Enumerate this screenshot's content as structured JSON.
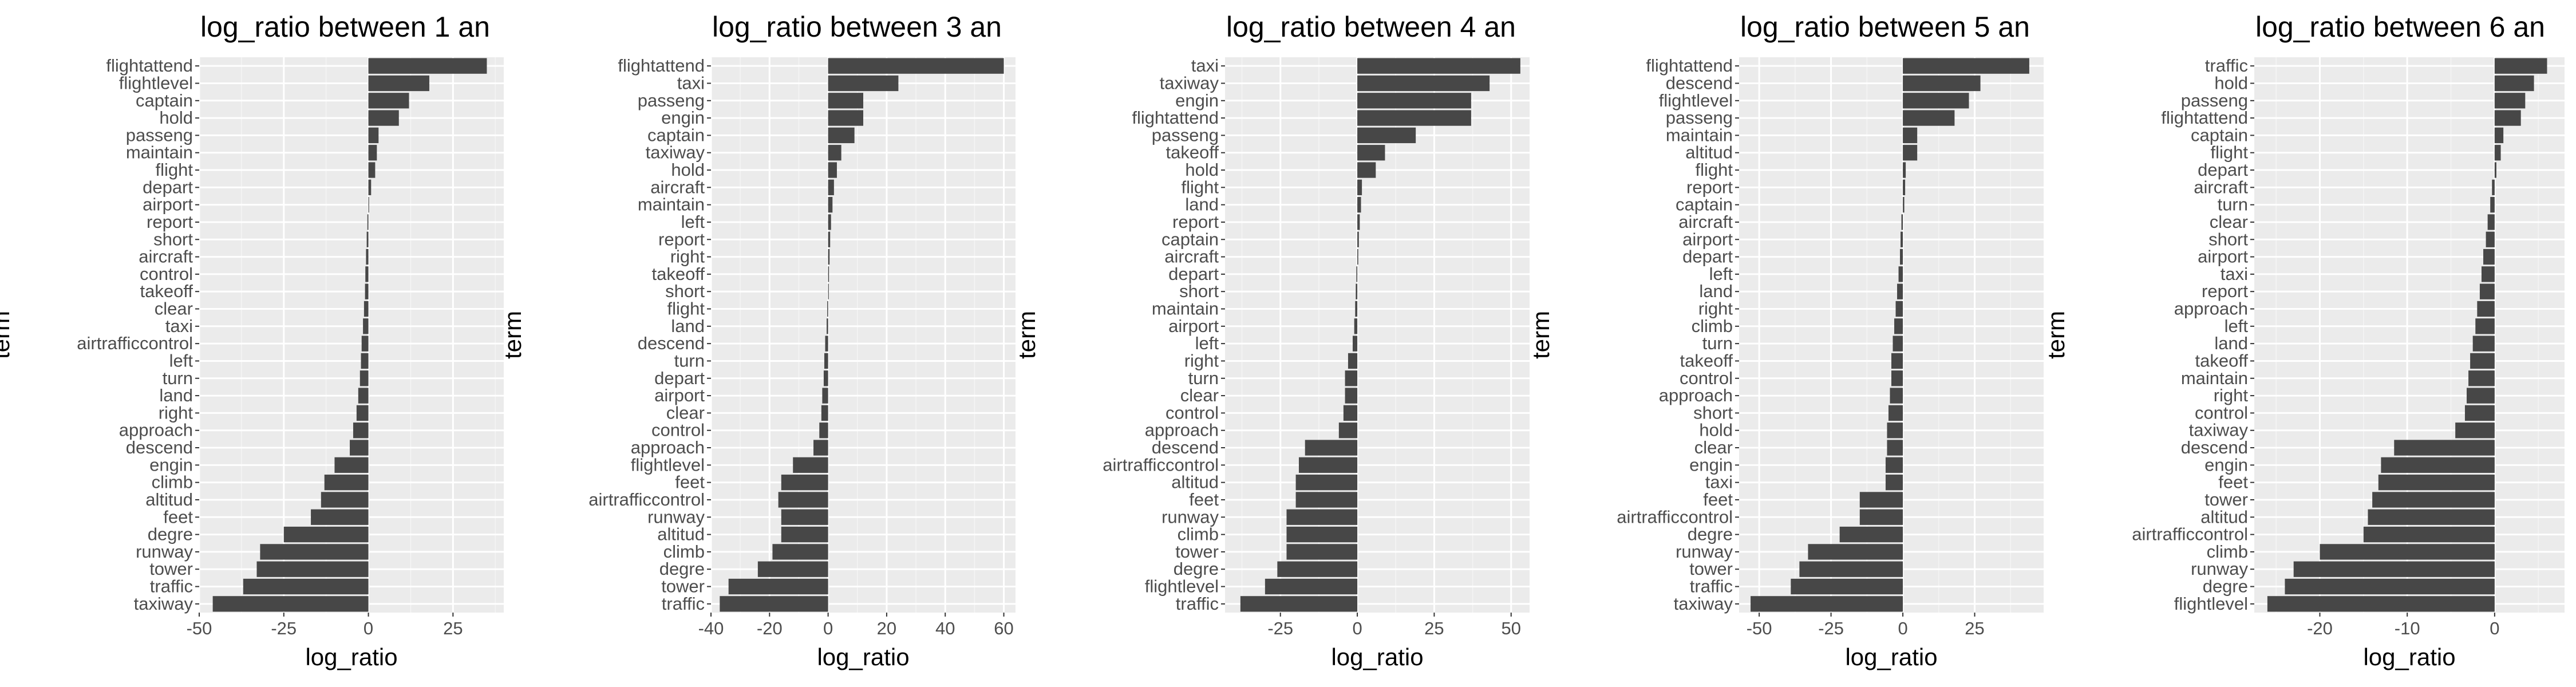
{
  "chart_data": [
    {
      "type": "bar",
      "orientation": "horizontal",
      "title": "log_ratio between 1 an",
      "xlabel": "log_ratio",
      "ylabel": "term",
      "xlim": [
        -50,
        40
      ],
      "xticks": [
        -50,
        -25,
        0,
        25
      ],
      "grid": true,
      "categories": [
        "flightattend",
        "flightlevel",
        "captain",
        "hold",
        "passeng",
        "maintain",
        "flight",
        "depart",
        "airport",
        "report",
        "short",
        "aircraft",
        "control",
        "takeoff",
        "clear",
        "taxi",
        "airtrafficcontrol",
        "left",
        "turn",
        "land",
        "right",
        "approach",
        "descend",
        "engin",
        "climb",
        "altitud",
        "feet",
        "degre",
        "runway",
        "tower",
        "traffic",
        "taxiway"
      ],
      "values": [
        35,
        18,
        12,
        9,
        3,
        2.5,
        2,
        0.8,
        0.2,
        -0.3,
        -0.5,
        -0.7,
        -0.9,
        -1,
        -1.3,
        -1.6,
        -2,
        -2.2,
        -2.5,
        -3,
        -3.5,
        -4.5,
        -5.5,
        -10,
        -13,
        -14,
        -17,
        -25,
        -32,
        -33,
        -37,
        -46
      ]
    },
    {
      "type": "bar",
      "orientation": "horizontal",
      "title": "log_ratio between 3 an",
      "xlabel": "log_ratio",
      "ylabel": "term",
      "xlim": [
        -40,
        64
      ],
      "xticks": [
        -40,
        -20,
        0,
        20,
        40,
        60
      ],
      "grid": true,
      "categories": [
        "flightattend",
        "taxi",
        "passeng",
        "engin",
        "captain",
        "taxiway",
        "hold",
        "aircraft",
        "maintain",
        "left",
        "report",
        "right",
        "takeoff",
        "short",
        "flight",
        "land",
        "descend",
        "turn",
        "depart",
        "airport",
        "clear",
        "control",
        "approach",
        "flightlevel",
        "feet",
        "airtrafficcontrol",
        "runway",
        "altitud",
        "climb",
        "degre",
        "tower",
        "traffic"
      ],
      "values": [
        60,
        24,
        12,
        12,
        9,
        4.5,
        3,
        2,
        1.5,
        1,
        0.7,
        0.5,
        0.3,
        0.2,
        -0.3,
        -0.5,
        -1,
        -1.3,
        -1.5,
        -2,
        -2.3,
        -3,
        -5,
        -12,
        -16,
        -17,
        -16,
        -16,
        -19,
        -24,
        -34,
        -37
      ]
    },
    {
      "type": "bar",
      "orientation": "horizontal",
      "title": "log_ratio between 4 an",
      "xlabel": "log_ratio",
      "ylabel": "term",
      "xlim": [
        -43,
        56
      ],
      "xticks": [
        -25,
        0,
        25,
        50
      ],
      "grid": true,
      "categories": [
        "taxi",
        "taxiway",
        "engin",
        "flightattend",
        "passeng",
        "takeoff",
        "hold",
        "flight",
        "land",
        "report",
        "captain",
        "aircraft",
        "depart",
        "short",
        "maintain",
        "airport",
        "left",
        "right",
        "turn",
        "clear",
        "control",
        "approach",
        "descend",
        "airtrafficcontrol",
        "altitud",
        "feet",
        "runway",
        "climb",
        "tower",
        "degre",
        "flightlevel",
        "traffic"
      ],
      "values": [
        53,
        43,
        37,
        37,
        19,
        9,
        6,
        1.5,
        1.2,
        0.8,
        0.5,
        0.3,
        -0.3,
        -0.5,
        -0.7,
        -1,
        -1.5,
        -3,
        -4,
        -4,
        -4.5,
        -6,
        -17,
        -19,
        -20,
        -20,
        -23,
        -23,
        -23,
        -26,
        -30,
        -38
      ]
    },
    {
      "type": "bar",
      "orientation": "horizontal",
      "title": "log_ratio between 5 an",
      "xlabel": "log_ratio",
      "ylabel": "term",
      "xlim": [
        -57,
        49
      ],
      "xticks": [
        -50,
        -25,
        0,
        25
      ],
      "grid": true,
      "categories": [
        "flightattend",
        "descend",
        "flightlevel",
        "passeng",
        "maintain",
        "altitud",
        "flight",
        "report",
        "captain",
        "aircraft",
        "airport",
        "depart",
        "left",
        "land",
        "right",
        "climb",
        "turn",
        "takeoff",
        "control",
        "approach",
        "short",
        "hold",
        "clear",
        "engin",
        "taxi",
        "feet",
        "airtrafficcontrol",
        "degre",
        "runway",
        "tower",
        "traffic",
        "taxiway"
      ],
      "values": [
        44,
        27,
        23,
        18,
        5,
        5,
        1,
        0.8,
        0.5,
        -0.5,
        -0.8,
        -1,
        -1.5,
        -2,
        -2.5,
        -3,
        -3.5,
        -4,
        -4,
        -4.5,
        -5,
        -5.5,
        -5.5,
        -6,
        -6,
        -15,
        -15,
        -22,
        -33,
        -36,
        -39,
        -53
      ]
    },
    {
      "type": "bar",
      "orientation": "horizontal",
      "title": "log_ratio between 6 an",
      "xlabel": "log_ratio",
      "ylabel": "term",
      "xlim": [
        -27.5,
        8
      ],
      "xticks": [
        -20,
        -10,
        0
      ],
      "grid": true,
      "categories": [
        "traffic",
        "hold",
        "passeng",
        "flightattend",
        "captain",
        "flight",
        "depart",
        "aircraft",
        "turn",
        "clear",
        "short",
        "airport",
        "taxi",
        "report",
        "approach",
        "left",
        "land",
        "takeoff",
        "maintain",
        "right",
        "control",
        "taxiway",
        "descend",
        "engin",
        "feet",
        "tower",
        "altitud",
        "airtrafficcontrol",
        "climb",
        "runway",
        "degre",
        "flightlevel"
      ],
      "values": [
        6,
        4.5,
        3.5,
        3,
        1,
        0.7,
        0.2,
        -0.3,
        -0.5,
        -0.8,
        -1,
        -1.3,
        -1.5,
        -1.7,
        -2,
        -2.2,
        -2.5,
        -2.8,
        -3,
        -3.2,
        -3.4,
        -4.5,
        -11.5,
        -13,
        -13.3,
        -14,
        -14.5,
        -15,
        -20,
        -23,
        -24,
        -26
      ]
    }
  ]
}
